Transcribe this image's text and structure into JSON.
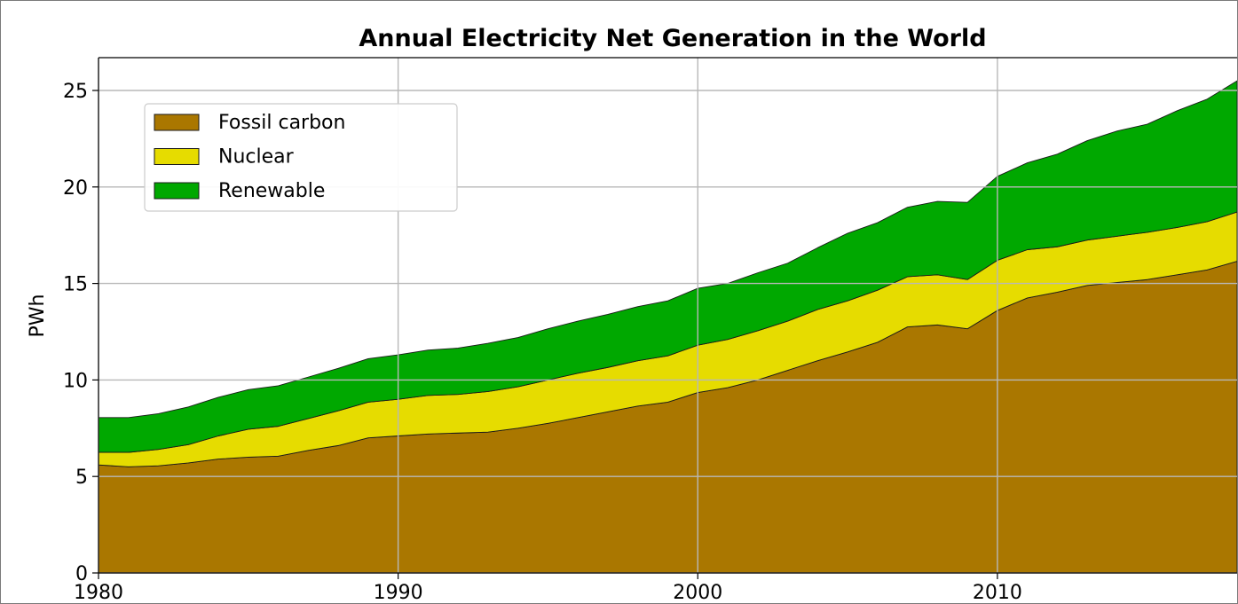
{
  "chart_data": {
    "type": "area",
    "stacked": true,
    "title": "Annual Electricity Net Generation in the World",
    "xlabel": "",
    "ylabel": "PWh",
    "xlim": [
      1980,
      2018
    ],
    "ylim": [
      0,
      26.7
    ],
    "xticks": [
      1980,
      1990,
      2000,
      2010
    ],
    "yticks": [
      0,
      5,
      10,
      15,
      20,
      25
    ],
    "grid": true,
    "legend_position": "upper-left",
    "x": [
      1980,
      1981,
      1982,
      1983,
      1984,
      1985,
      1986,
      1987,
      1988,
      1989,
      1990,
      1991,
      1992,
      1993,
      1994,
      1995,
      1996,
      1997,
      1998,
      1999,
      2000,
      2001,
      2002,
      2003,
      2004,
      2005,
      2006,
      2007,
      2008,
      2009,
      2010,
      2011,
      2012,
      2013,
      2014,
      2015,
      2016,
      2017,
      2018
    ],
    "series": [
      {
        "name": "Fossil carbon",
        "color": "#aa7700",
        "values": [
          5.6,
          5.5,
          5.55,
          5.7,
          5.9,
          6.0,
          6.05,
          6.35,
          6.6,
          7.0,
          7.1,
          7.2,
          7.25,
          7.3,
          7.5,
          7.75,
          8.05,
          8.35,
          8.65,
          8.85,
          9.35,
          9.6,
          10.0,
          10.5,
          11.0,
          11.45,
          11.95,
          12.75,
          12.85,
          12.65,
          13.6,
          14.25,
          14.55,
          14.9,
          15.05,
          15.2,
          15.45,
          15.7,
          16.15
        ]
      },
      {
        "name": "Nuclear",
        "color": "#e6dc00",
        "values": [
          0.65,
          0.75,
          0.85,
          0.95,
          1.2,
          1.45,
          1.55,
          1.65,
          1.8,
          1.85,
          1.9,
          2.0,
          2.0,
          2.1,
          2.15,
          2.25,
          2.3,
          2.3,
          2.35,
          2.4,
          2.45,
          2.5,
          2.55,
          2.55,
          2.65,
          2.65,
          2.7,
          2.6,
          2.6,
          2.55,
          2.6,
          2.5,
          2.35,
          2.35,
          2.4,
          2.45,
          2.45,
          2.5,
          2.55
        ]
      },
      {
        "name": "Renewable",
        "color": "#00a800",
        "values": [
          1.8,
          1.8,
          1.85,
          1.95,
          2.0,
          2.05,
          2.1,
          2.15,
          2.2,
          2.25,
          2.3,
          2.35,
          2.4,
          2.5,
          2.55,
          2.65,
          2.7,
          2.75,
          2.8,
          2.85,
          2.95,
          2.9,
          3.0,
          3.0,
          3.2,
          3.5,
          3.5,
          3.6,
          3.8,
          4.0,
          4.35,
          4.5,
          4.8,
          5.15,
          5.45,
          5.6,
          6.05,
          6.35,
          6.8
        ]
      }
    ]
  }
}
